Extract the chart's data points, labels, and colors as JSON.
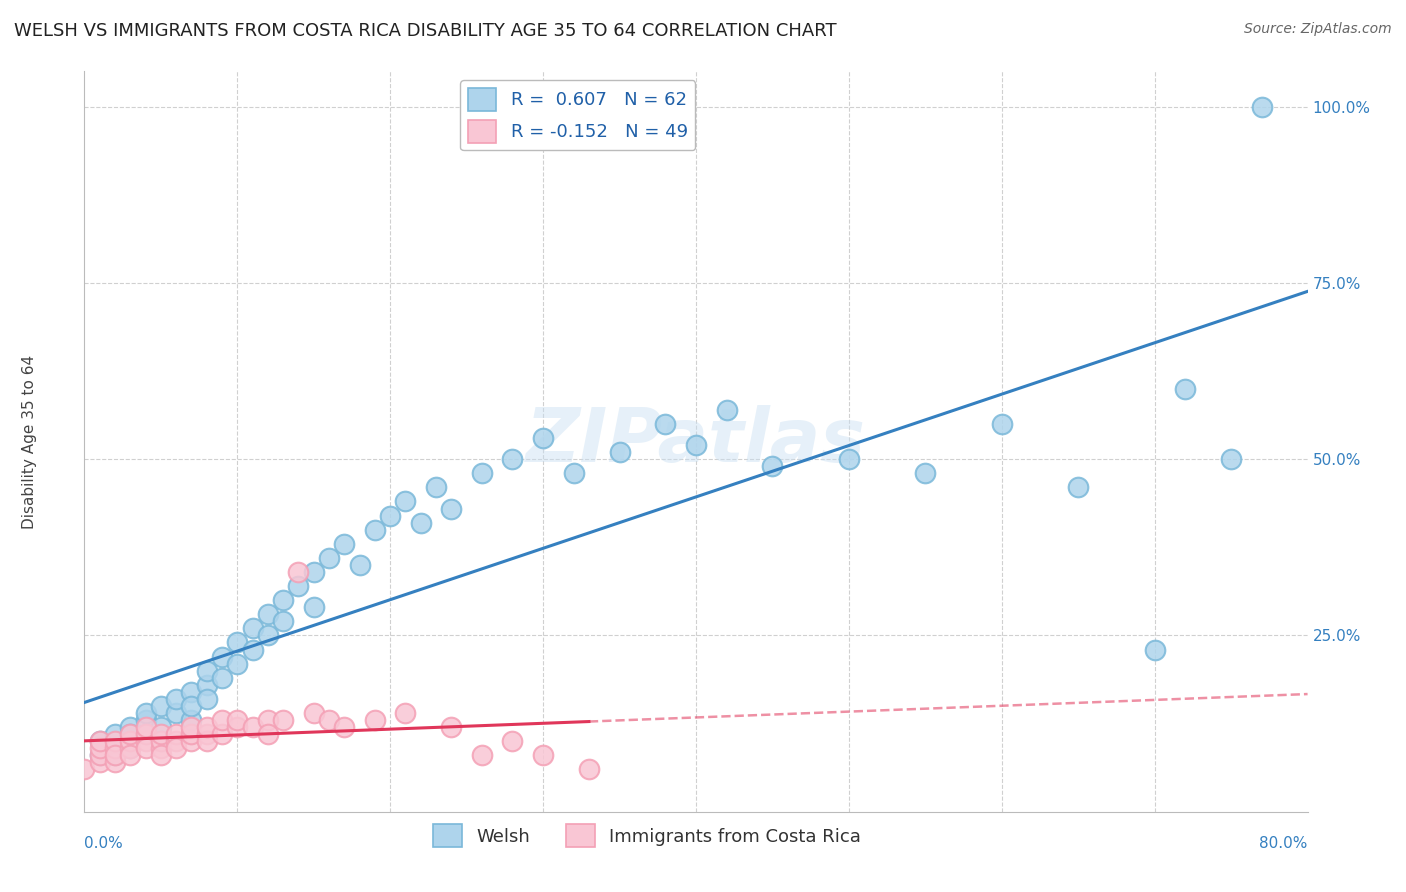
{
  "title": "WELSH VS IMMIGRANTS FROM COSTA RICA DISABILITY AGE 35 TO 64 CORRELATION CHART",
  "source": "Source: ZipAtlas.com",
  "ylabel": "Disability Age 35 to 64",
  "xlim": [
    0.0,
    0.8
  ],
  "ylim": [
    0.0,
    1.05
  ],
  "welsh_R": 0.607,
  "welsh_N": 62,
  "cr_R": -0.152,
  "cr_N": 49,
  "welsh_color": "#7ab8d9",
  "welsh_fill": "#aed4ec",
  "cr_color": "#f4a0b5",
  "cr_fill": "#f9c6d4",
  "trend_welsh_color": "#3580c0",
  "trend_cr_color": "#e0365a",
  "background_color": "#ffffff",
  "grid_color": "#d0d0d0",
  "watermark": "ZIPatlas",
  "legend_label_welsh": "Welsh",
  "legend_label_cr": "Immigrants from Costa Rica",
  "welsh_scatter_x": [
    0.01,
    0.01,
    0.02,
    0.02,
    0.02,
    0.03,
    0.03,
    0.03,
    0.03,
    0.04,
    0.04,
    0.04,
    0.05,
    0.05,
    0.05,
    0.06,
    0.06,
    0.07,
    0.07,
    0.07,
    0.08,
    0.08,
    0.08,
    0.09,
    0.09,
    0.1,
    0.1,
    0.11,
    0.11,
    0.12,
    0.12,
    0.13,
    0.13,
    0.14,
    0.15,
    0.15,
    0.16,
    0.17,
    0.18,
    0.19,
    0.2,
    0.21,
    0.22,
    0.23,
    0.24,
    0.26,
    0.28,
    0.3,
    0.32,
    0.35,
    0.38,
    0.4,
    0.42,
    0.45,
    0.5,
    0.55,
    0.6,
    0.65,
    0.7,
    0.72,
    0.75,
    0.77
  ],
  "welsh_scatter_y": [
    0.08,
    0.1,
    0.09,
    0.11,
    0.08,
    0.1,
    0.12,
    0.09,
    0.11,
    0.13,
    0.11,
    0.14,
    0.12,
    0.15,
    0.1,
    0.14,
    0.16,
    0.13,
    0.17,
    0.15,
    0.18,
    0.16,
    0.2,
    0.19,
    0.22,
    0.21,
    0.24,
    0.23,
    0.26,
    0.28,
    0.25,
    0.3,
    0.27,
    0.32,
    0.34,
    0.29,
    0.36,
    0.38,
    0.35,
    0.4,
    0.42,
    0.44,
    0.41,
    0.46,
    0.43,
    0.48,
    0.5,
    0.53,
    0.48,
    0.51,
    0.55,
    0.52,
    0.57,
    0.49,
    0.5,
    0.48,
    0.55,
    0.46,
    0.23,
    0.6,
    0.5,
    1.0
  ],
  "cr_scatter_x": [
    0.0,
    0.01,
    0.01,
    0.01,
    0.01,
    0.02,
    0.02,
    0.02,
    0.02,
    0.03,
    0.03,
    0.03,
    0.03,
    0.04,
    0.04,
    0.04,
    0.04,
    0.05,
    0.05,
    0.05,
    0.05,
    0.06,
    0.06,
    0.06,
    0.07,
    0.07,
    0.07,
    0.08,
    0.08,
    0.08,
    0.09,
    0.09,
    0.1,
    0.1,
    0.11,
    0.12,
    0.12,
    0.13,
    0.14,
    0.15,
    0.16,
    0.17,
    0.19,
    0.21,
    0.24,
    0.26,
    0.28,
    0.3,
    0.33
  ],
  "cr_scatter_y": [
    0.06,
    0.07,
    0.08,
    0.09,
    0.1,
    0.07,
    0.09,
    0.1,
    0.08,
    0.09,
    0.1,
    0.11,
    0.08,
    0.1,
    0.11,
    0.09,
    0.12,
    0.09,
    0.1,
    0.11,
    0.08,
    0.1,
    0.11,
    0.09,
    0.1,
    0.11,
    0.12,
    0.11,
    0.1,
    0.12,
    0.11,
    0.13,
    0.12,
    0.13,
    0.12,
    0.13,
    0.11,
    0.13,
    0.34,
    0.14,
    0.13,
    0.12,
    0.13,
    0.14,
    0.12,
    0.08,
    0.1,
    0.08,
    0.06
  ],
  "title_fontsize": 13,
  "axis_label_fontsize": 11,
  "tick_fontsize": 11,
  "legend_fontsize": 13,
  "source_fontsize": 10
}
